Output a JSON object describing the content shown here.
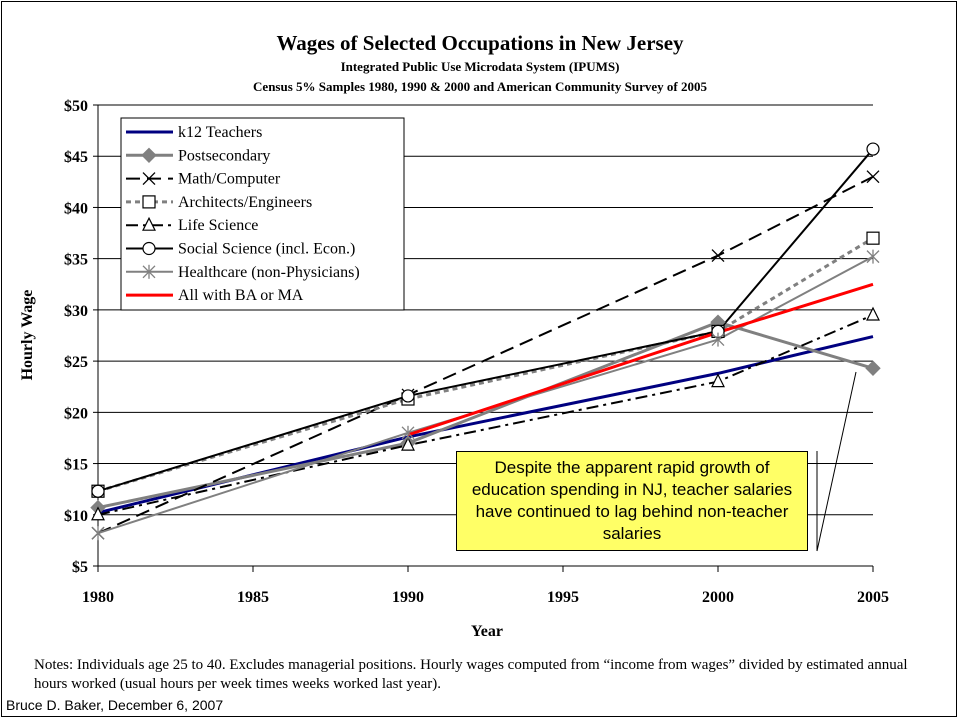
{
  "chart_data": {
    "type": "line",
    "title": "Wages of Selected Occupations in New Jersey",
    "subtitle_1": "Integrated Public Use Microdata System (IPUMS)",
    "subtitle_2": "Census 5% Samples 1980, 1990 & 2000 and American Community Survey of 2005",
    "xlabel": "Year",
    "ylabel": "Hourly Wage",
    "xlim": [
      1980,
      2005
    ],
    "ylim": [
      5,
      50
    ],
    "x_ticks": [
      1980,
      1985,
      1990,
      1995,
      2000,
      2005
    ],
    "y_ticks": [
      5,
      10,
      15,
      20,
      25,
      30,
      35,
      40,
      45,
      50
    ],
    "y_tick_labels": [
      "$5",
      "$10",
      "$15",
      "$20",
      "$25",
      "$30",
      "$35",
      "$40",
      "$45",
      "$50"
    ],
    "grid": "horizontal",
    "legend_position": "top-left",
    "x": [
      1980,
      1990,
      2000,
      2005
    ],
    "series": [
      {
        "name": "k12 Teachers",
        "values": [
          10.2,
          17.6,
          23.8,
          27.4
        ],
        "color": "#000080",
        "dash": "none",
        "marker": "none",
        "width": 3
      },
      {
        "name": "Postsecondary",
        "values": [
          10.7,
          17.0,
          28.8,
          24.3
        ],
        "color": "#808080",
        "dash": "none",
        "marker": "diamond",
        "width": 3
      },
      {
        "name": "Math/Computer",
        "values": [
          8.2,
          21.7,
          35.3,
          43.0
        ],
        "color": "#000000",
        "dash": "long-dash",
        "marker": "x",
        "width": 2
      },
      {
        "name": "Architects/Engineers",
        "values": [
          12.3,
          21.3,
          27.9,
          37.0
        ],
        "color": "#808080",
        "dash": "short-dash",
        "marker": "square",
        "width": 3
      },
      {
        "name": "Life Science",
        "values": [
          10.0,
          16.8,
          23.0,
          29.5
        ],
        "color": "#000000",
        "dash": "dash-dot",
        "marker": "triangle",
        "width": 2
      },
      {
        "name": "Social Science (incl. Econ.)",
        "values": [
          12.3,
          21.6,
          27.9,
          45.7
        ],
        "color": "#000000",
        "dash": "none",
        "marker": "circle",
        "width": 2
      },
      {
        "name": "Healthcare (non-Physicians)",
        "values": [
          8.2,
          18.0,
          27.1,
          35.2
        ],
        "color": "#808080",
        "dash": "none",
        "marker": "star",
        "width": 2
      },
      {
        "name": "All with BA or MA",
        "values": [
          null,
          17.8,
          27.8,
          32.5
        ],
        "color": "#ff0000",
        "dash": "none",
        "marker": "none",
        "width": 3
      }
    ],
    "annotation": "Despite the apparent rapid growth of education spending in NJ, teacher salaries have continued to lag behind non-teacher salaries"
  },
  "notes": "Notes: Individuals age 25 to 40. Excludes managerial positions. Hourly wages computed from “income from wages” divided by estimated annual hours worked (usual hours per week times weeks worked last year).",
  "credit": "Bruce D. Baker, December 6, 2007"
}
